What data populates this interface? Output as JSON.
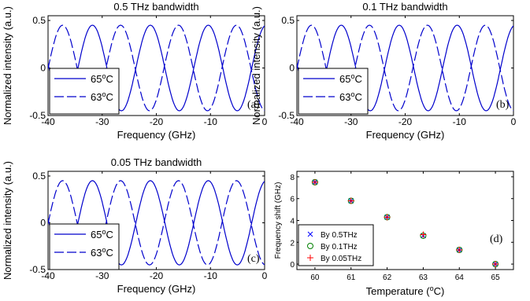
{
  "chart_data": [
    {
      "type": "line",
      "panel": "(a)",
      "title": "0.5 THz bandwidth",
      "xlabel": "Frequency (GHz)",
      "ylabel": "Normalized intensity (a.u.)",
      "xlim": [
        -40,
        0
      ],
      "ylim": [
        -0.5,
        0.55
      ],
      "xticks": [
        -40,
        -30,
        -20,
        -10,
        0
      ],
      "yticks": [
        -0.5,
        0,
        0.5
      ],
      "legend_position": "bottom-left",
      "series": [
        {
          "name": "65°C",
          "style": "solid",
          "color": "#0000cc",
          "amplitude": 0.45,
          "period_ghz": 10.7,
          "peaks_ghz": [
            -31.8,
            -21.1,
            -10.4,
            0.3
          ]
        },
        {
          "name": "63°C",
          "style": "dashed",
          "color": "#0000cc",
          "amplitude": 0.45,
          "period_ghz": 10.7,
          "peaks_ghz": [
            -37.3,
            -26.6,
            -15.9,
            -5.2
          ]
        }
      ]
    },
    {
      "type": "line",
      "panel": "(b)",
      "title": "0.1 THz bandwidth",
      "xlabel": "Frequency (GHz)",
      "ylabel": "Normalized intensity (a.u.)",
      "xlim": [
        -40,
        0
      ],
      "ylim": [
        -0.5,
        0.55
      ],
      "xticks": [
        -40,
        -30,
        -20,
        -10,
        0
      ],
      "yticks": [
        -0.5,
        0,
        0.5
      ],
      "legend_position": "bottom-left",
      "series": [
        {
          "name": "65°C",
          "style": "solid",
          "color": "#0000cc",
          "amplitude": 0.45,
          "period_ghz": 10.7,
          "peaks_ghz": [
            -31.8,
            -21.1,
            -10.4,
            0.3
          ]
        },
        {
          "name": "63°C",
          "style": "dashed",
          "color": "#0000cc",
          "amplitude": 0.45,
          "period_ghz": 10.7,
          "peaks_ghz": [
            -37.3,
            -26.6,
            -15.9,
            -5.2
          ]
        }
      ]
    },
    {
      "type": "line",
      "panel": "(c)",
      "title": "0.05 THz bandwidth",
      "xlabel": "Frequency (GHz)",
      "ylabel": "Normalized intensity (a.u.)",
      "xlim": [
        -40,
        0
      ],
      "ylim": [
        -0.5,
        0.55
      ],
      "xticks": [
        -40,
        -30,
        -20,
        -10,
        0
      ],
      "yticks": [
        -0.5,
        0,
        0.5
      ],
      "legend_position": "bottom-left",
      "series": [
        {
          "name": "65°C",
          "style": "solid",
          "color": "#0000cc",
          "amplitude": 0.45,
          "period_ghz": 10.7,
          "peaks_ghz": [
            -31.8,
            -21.1,
            -10.4,
            0.3
          ]
        },
        {
          "name": "63°C",
          "style": "dashed",
          "color": "#0000cc",
          "amplitude": 0.45,
          "period_ghz": 10.7,
          "peaks_ghz": [
            -37.3,
            -26.6,
            -15.9,
            -5.2
          ]
        }
      ]
    },
    {
      "type": "scatter",
      "panel": "(d)",
      "title": "",
      "xlabel": "Temperature (°C)",
      "ylabel": "Frequency shift (GHz)",
      "xlim": [
        59.5,
        65.5
      ],
      "ylim": [
        -0.5,
        8.5
      ],
      "xticks": [
        60,
        61,
        62,
        63,
        64,
        65
      ],
      "yticks": [
        0,
        2,
        4,
        6,
        8
      ],
      "legend_position": "bottom-left",
      "x": [
        60,
        61,
        62,
        63,
        64,
        65
      ],
      "series": [
        {
          "name": "By 0.5THz",
          "marker": "x",
          "color": "#0000ff",
          "values": [
            7.5,
            5.8,
            4.3,
            2.6,
            1.3,
            0.0
          ]
        },
        {
          "name": "By 0.1THz",
          "marker": "o",
          "color": "#008000",
          "values": [
            7.5,
            5.8,
            4.3,
            2.6,
            1.3,
            0.0
          ]
        },
        {
          "name": "By 0.05THz",
          "marker": "+",
          "color": "#ff0000",
          "values": [
            7.5,
            5.8,
            4.3,
            2.7,
            1.3,
            0.0
          ]
        }
      ]
    }
  ]
}
